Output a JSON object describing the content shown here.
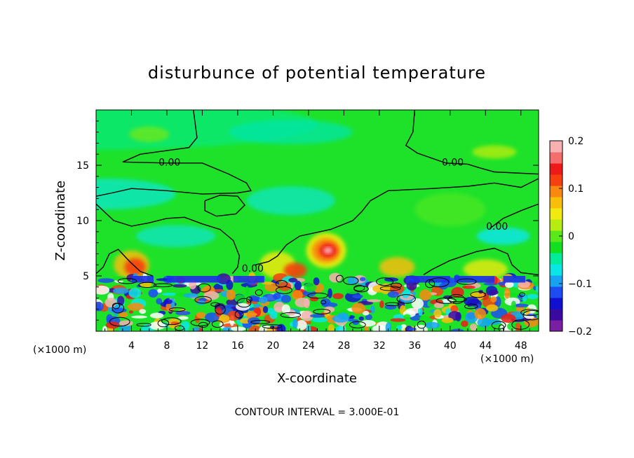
{
  "title": "disturbunce of potential temperature",
  "footer": "CONTOUR INTERVAL = 3.000E-01",
  "colors": {
    "palette": [
      "#7a1fa2",
      "#3a0aa0",
      "#1010d0",
      "#1d4cf0",
      "#16a4f2",
      "#0ae6e6",
      "#00ec9c",
      "#10e020",
      "#5ae81a",
      "#b6ec10",
      "#f0ea10",
      "#f7be0a",
      "#f98810",
      "#f64010",
      "#ee1a1a",
      "#f56e6e",
      "#f8b0b0"
    ],
    "contour": "#000000",
    "zero_strip": "#00f0a0",
    "field_green": "#1ee22a"
  },
  "chart_data": {
    "type": "heatmap",
    "title": "disturbunce of potential temperature",
    "xlabel": "X-coordinate",
    "ylabel": "Z-coordinate",
    "x_unit": "(×1000 m)",
    "z_unit": "(×1000 m)",
    "xlim": [
      0,
      50
    ],
    "ylim": [
      0,
      20
    ],
    "x_ticks": [
      4,
      8,
      12,
      16,
      20,
      24,
      28,
      32,
      36,
      40,
      44,
      48
    ],
    "y_ticks": [
      5,
      10,
      15
    ],
    "colorbar": {
      "range": [
        -0.2,
        0.2
      ],
      "ticks": [
        {
          "value": 0.2,
          "label": "0.2"
        },
        {
          "value": 0.1,
          "label": "0.1"
        },
        {
          "value": 0,
          "label": "0"
        },
        {
          "value": -0.1,
          "label": "−0.1"
        },
        {
          "value": -0.2,
          "label": "−0.2"
        }
      ]
    },
    "contour_interval": 0.3,
    "contour_labels": [
      {
        "text": "0.00",
        "x": 8.3,
        "z": 15.3
      },
      {
        "text": "0.00",
        "x": 40.3,
        "z": 15.3
      },
      {
        "text": "0.00",
        "x": 45.3,
        "z": 9.5
      },
      {
        "text": "0.00",
        "x": 17.7,
        "z": 5.7
      }
    ],
    "contour_lines": [
      {
        "points": [
          [
            11,
            20
          ],
          [
            11.4,
            17.5
          ],
          [
            10.5,
            16.6
          ],
          [
            5,
            16
          ],
          [
            3,
            15.3
          ],
          [
            8,
            15.2
          ],
          [
            12,
            15.2
          ],
          [
            15,
            14.2
          ],
          [
            17,
            13.4
          ],
          [
            17.5,
            12.7
          ],
          [
            16,
            12.5
          ],
          [
            12,
            12.4
          ],
          [
            8,
            12.7
          ],
          [
            4,
            12.9
          ],
          [
            1.8,
            12.5
          ],
          [
            0,
            12.2
          ]
        ]
      },
      {
        "points": [
          [
            36,
            20
          ],
          [
            35.8,
            18
          ],
          [
            35,
            16.8
          ],
          [
            36.3,
            16.1
          ],
          [
            39.5,
            15.2
          ],
          [
            42,
            15.1
          ],
          [
            43.2,
            14.8
          ],
          [
            45,
            14.4
          ],
          [
            50,
            14.2
          ]
        ]
      },
      {
        "points": [
          [
            50,
            13.8
          ],
          [
            48,
            13
          ],
          [
            45,
            13.4
          ],
          [
            42,
            13.1
          ],
          [
            38,
            12.9
          ],
          [
            33,
            12.7
          ],
          [
            31,
            11.8
          ],
          [
            30,
            10.8
          ],
          [
            29,
            10
          ],
          [
            26.5,
            9.2
          ],
          [
            23,
            8.6
          ],
          [
            21.5,
            7.8
          ],
          [
            20.5,
            6.8
          ],
          [
            19.5,
            6.3
          ],
          [
            18,
            6
          ]
        ]
      },
      {
        "points": [
          [
            0,
            11.5
          ],
          [
            2,
            10
          ],
          [
            4,
            9.5
          ],
          [
            6,
            9.8
          ],
          [
            8,
            10.2
          ],
          [
            10,
            10.3
          ],
          [
            12,
            9.7
          ],
          [
            14,
            9.2
          ],
          [
            15.5,
            8.2
          ],
          [
            16.2,
            6.8
          ],
          [
            16,
            5.8
          ],
          [
            15.4,
            5.2
          ]
        ]
      },
      {
        "points": [
          [
            12.3,
            11.8
          ],
          [
            14,
            12.3
          ],
          [
            16,
            12.2
          ],
          [
            16.8,
            11.4
          ],
          [
            15.8,
            10.6
          ],
          [
            13.6,
            10.4
          ],
          [
            12.3,
            10.9
          ],
          [
            12.3,
            11.8
          ]
        ]
      },
      {
        "points": [
          [
            44.5,
            9.3
          ],
          [
            46,
            10.2
          ],
          [
            48,
            10.9
          ],
          [
            50,
            11.5
          ]
        ]
      },
      {
        "points": [
          [
            37,
            5.1
          ],
          [
            38,
            5.6
          ],
          [
            40,
            6.4
          ],
          [
            43,
            7.2
          ],
          [
            45,
            7.5
          ],
          [
            46.5,
            7
          ],
          [
            47,
            6
          ],
          [
            48,
            5.3
          ],
          [
            50,
            5.1
          ]
        ]
      },
      {
        "points": [
          [
            0,
            5.2
          ],
          [
            0.8,
            5.8
          ],
          [
            1.5,
            7
          ],
          [
            2.5,
            7.4
          ],
          [
            3.8,
            6.3
          ],
          [
            5,
            5.4
          ],
          [
            6.4,
            5
          ]
        ]
      }
    ]
  }
}
